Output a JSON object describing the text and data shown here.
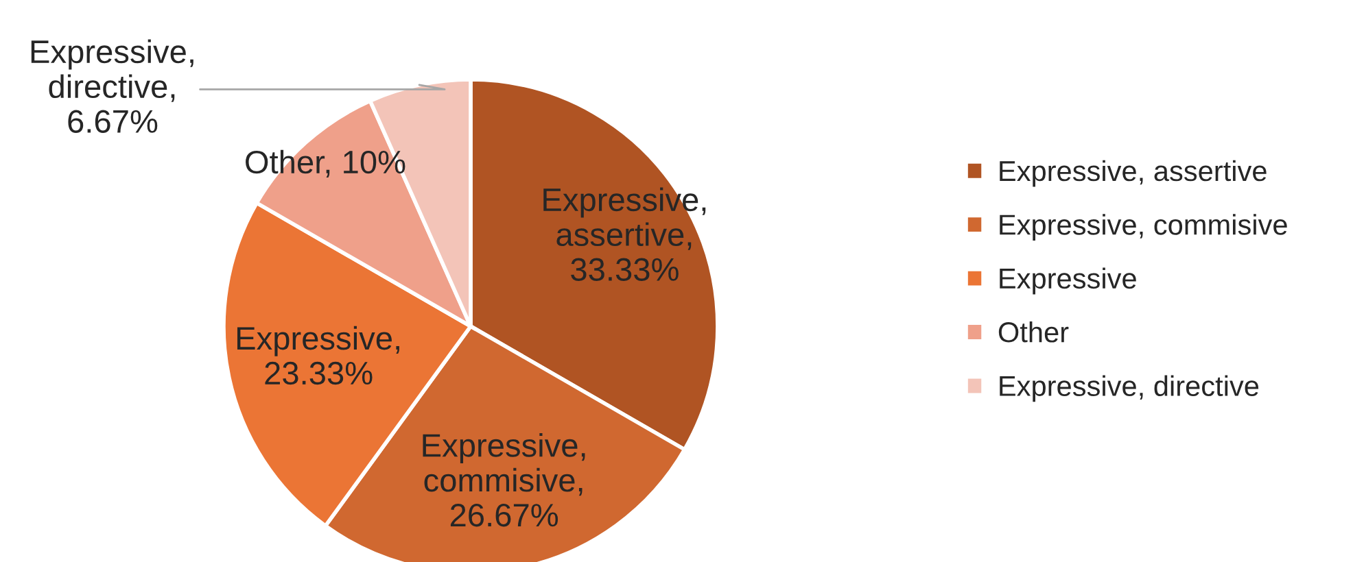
{
  "chart_data": {
    "type": "pie",
    "categories": [
      "Expressive, assertive",
      "Expressive, commisive",
      "Expressive",
      "Other",
      "Expressive, directive"
    ],
    "values": [
      33.33,
      26.67,
      23.33,
      10,
      6.67
    ],
    "colors": [
      "#b05423",
      "#d06830",
      "#eb7535",
      "#efa08a",
      "#f3c4b8"
    ],
    "value_labels": [
      "Expressive,\nassertive,\n33.33%",
      "Expressive,\ncommisive,\n26.67%",
      "Expressive,\n23.33%",
      "Other, 10%",
      "Expressive,\ndirective,\n6.67%"
    ],
    "legend": "right"
  }
}
